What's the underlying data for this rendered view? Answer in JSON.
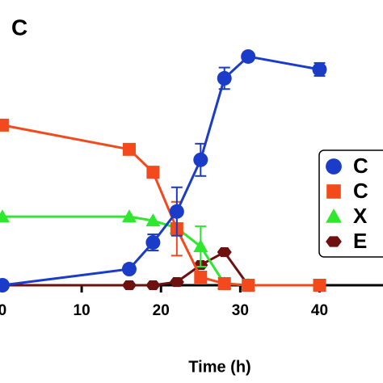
{
  "chart_data": {
    "type": "line",
    "panel_label": "C",
    "xlabel": "Time (h)",
    "x": [
      0,
      16,
      19,
      22,
      25,
      28,
      31,
      40
    ],
    "xlim": [
      -0.3,
      48
    ],
    "xticks": [
      0,
      10,
      20,
      30,
      40
    ],
    "ylim": [
      0,
      100
    ],
    "series": [
      {
        "name": "C",
        "color": "#1a3cc8",
        "marker": "circle",
        "values": [
          0,
          6,
          15.9,
          27.4,
          46.6,
          76.9,
          85,
          80.2
        ],
        "errors": [
          null,
          null,
          3,
          9,
          6,
          4,
          null,
          2.4
        ]
      },
      {
        "name": "C",
        "color": "#f24a1c",
        "marker": "square",
        "values": [
          59.5,
          50.5,
          42,
          21,
          3,
          0.6,
          0,
          0
        ],
        "errors": [
          null,
          null,
          null,
          10,
          null,
          null,
          null,
          null
        ]
      },
      {
        "name": "X",
        "color": "#2ee82e",
        "marker": "triangle",
        "values": [
          25.5,
          25.5,
          24,
          21.3,
          14.4,
          0.6,
          0,
          null
        ],
        "errors": [
          null,
          null,
          null,
          null,
          7.5,
          null,
          null,
          null
        ]
      },
      {
        "name": "E",
        "color": "#6e1010",
        "marker": "hexagon",
        "values": [
          0,
          0,
          0,
          1.2,
          7.5,
          12.3,
          0,
          null
        ],
        "errors": [
          null,
          null,
          null,
          null,
          null,
          null,
          null,
          null
        ]
      }
    ]
  }
}
